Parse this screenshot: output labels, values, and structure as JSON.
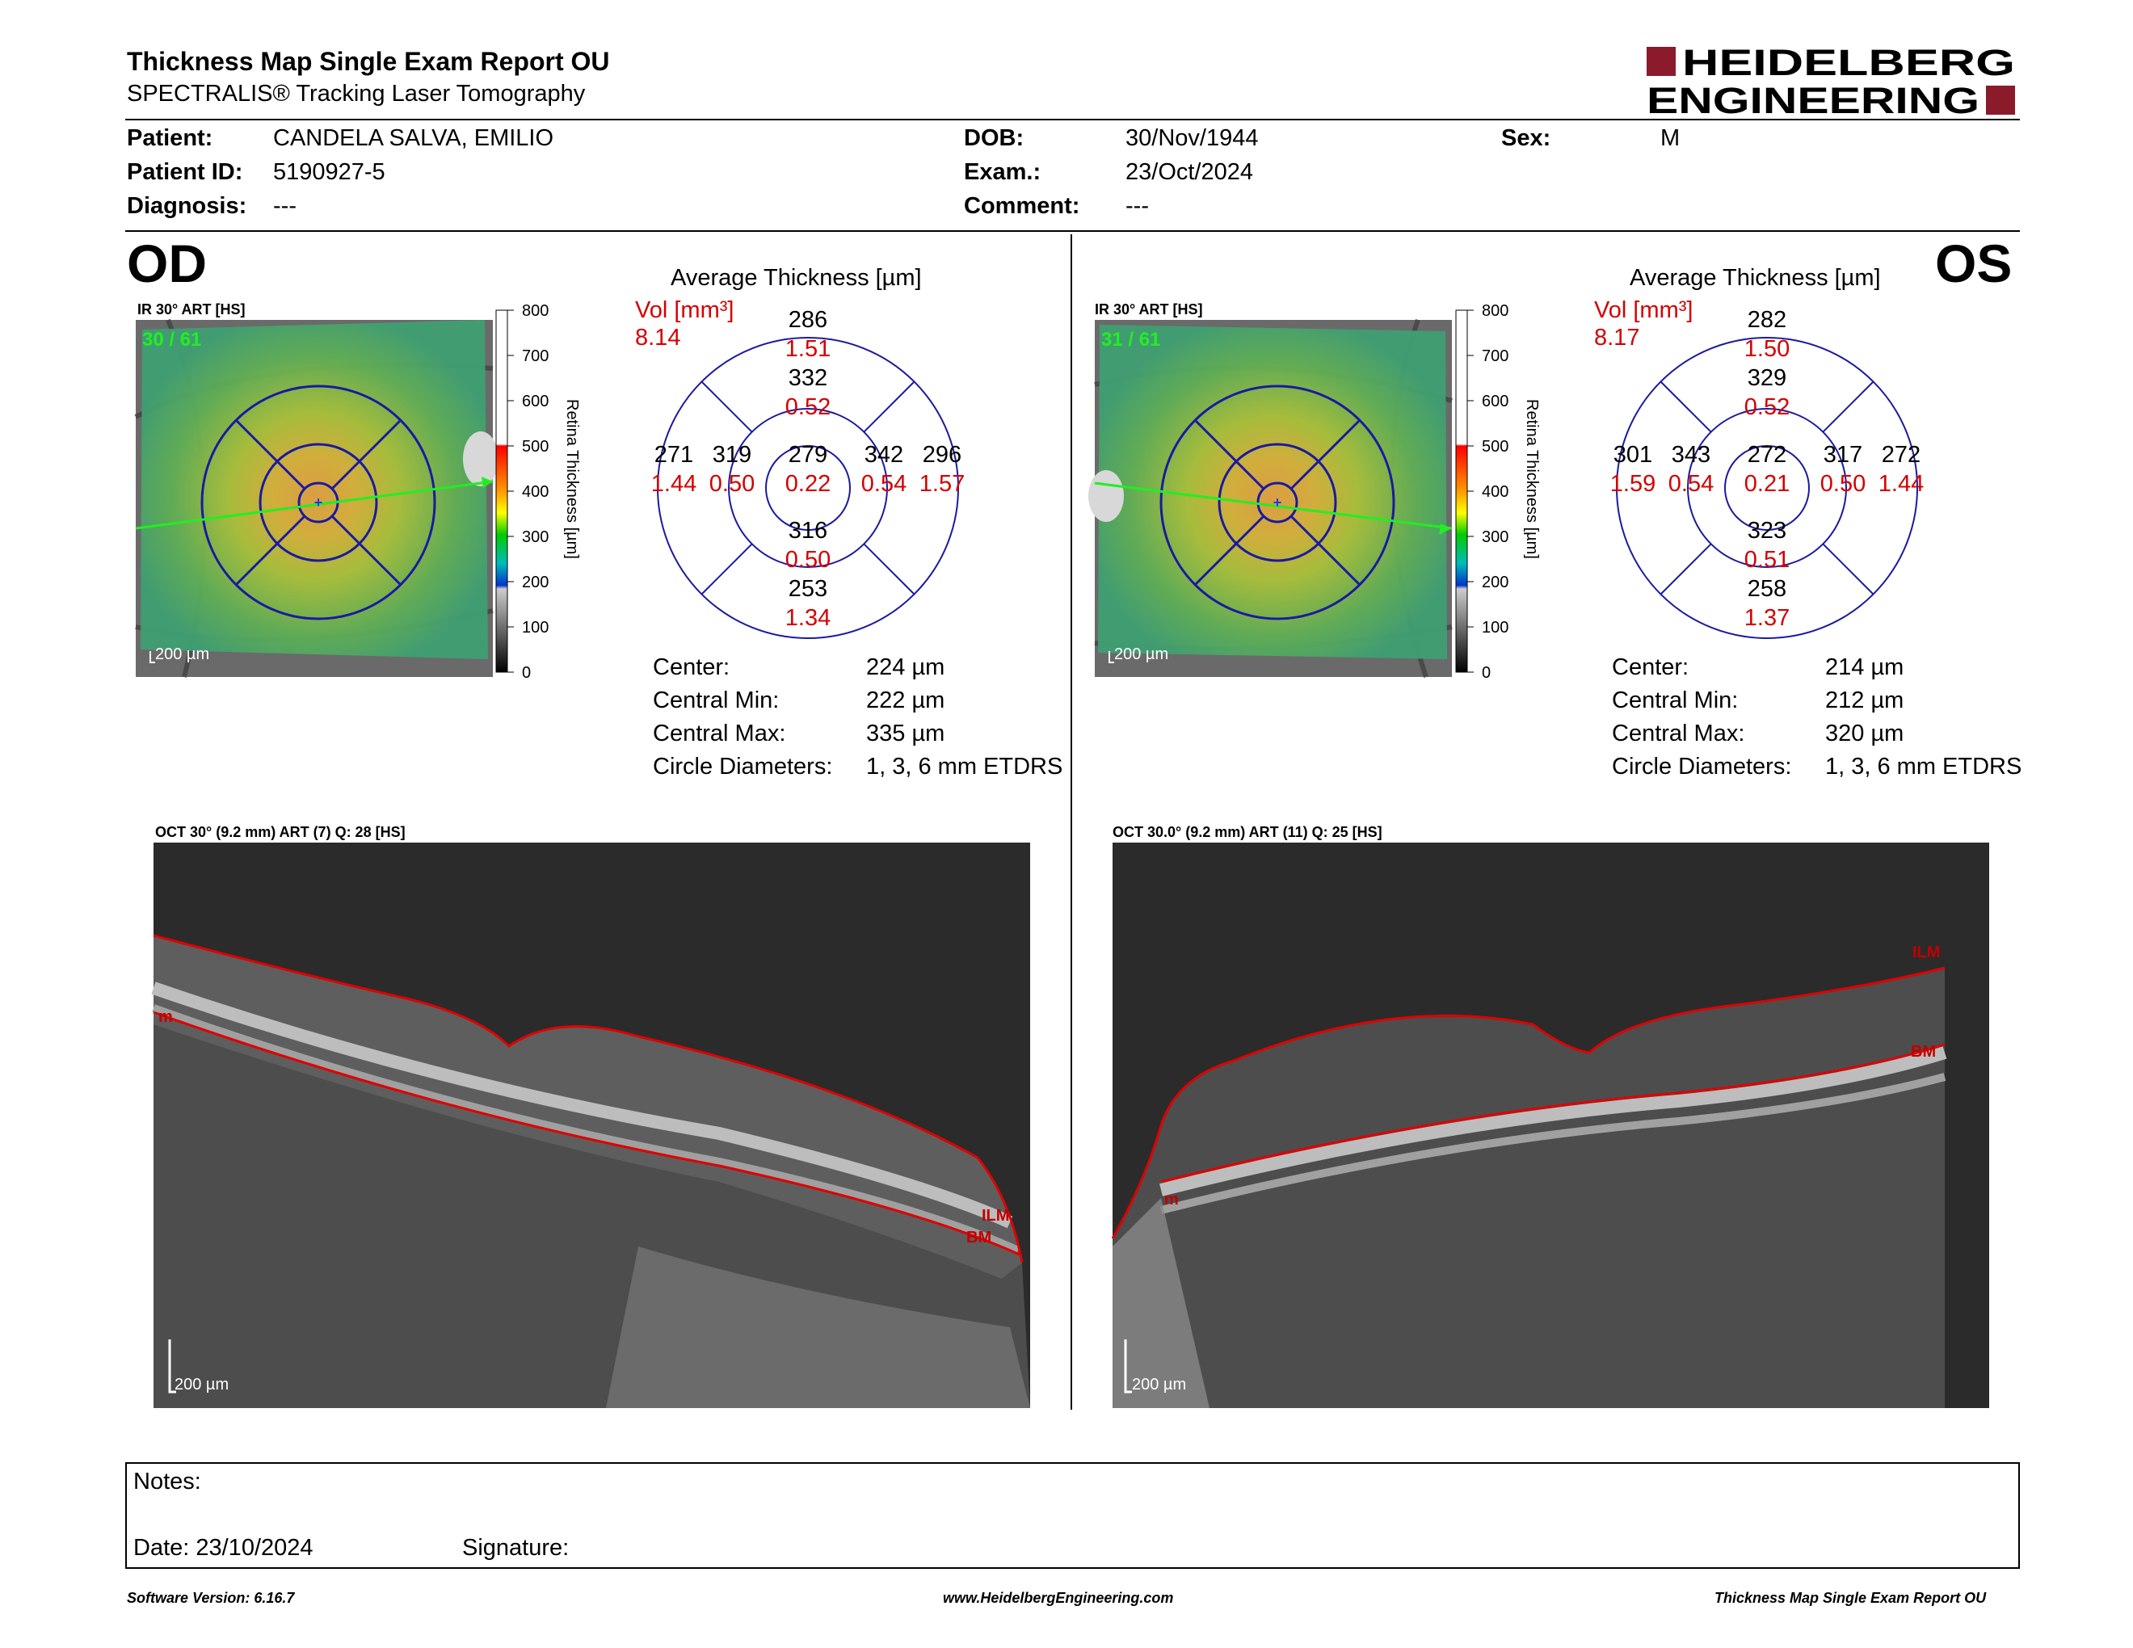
{
  "header": {
    "title": "Thickness Map Single Exam Report OU",
    "subtitle": "SPECTRALIS® Tracking Laser Tomography",
    "logo_line1": "HEIDELBERG",
    "logo_line2": "ENGINEERING",
    "brand_color": "#8b1a2b"
  },
  "patient": {
    "patient_label": "Patient:",
    "patient": "CANDELA SALVA, EMILIO",
    "id_label": "Patient ID:",
    "id": "5190927-5",
    "diagnosis_label": "Diagnosis:",
    "diagnosis": "---",
    "dob_label": "DOB:",
    "dob": "30/Nov/1944",
    "exam_label": "Exam.:",
    "exam": "23/Oct/2024",
    "comment_label": "Comment:",
    "comment": "---",
    "sex_label": "Sex:",
    "sex": "M"
  },
  "scale": {
    "ticks": [
      "800",
      "700",
      "600",
      "500",
      "400",
      "300",
      "200",
      "100",
      "0"
    ],
    "axis_label": "Retina  Thickness [µm]"
  },
  "od": {
    "eye": "OD",
    "fundus_label": "IR 30° ART [HS]",
    "scan_count": "30 / 61",
    "fundus_scale": "200 µm",
    "avg_title": "Average Thickness [µm]",
    "vol_label": "Vol [mm³]",
    "vol_total": "8.14",
    "etdrs": {
      "center_t": "279",
      "center_v": "0.22",
      "inner_sup_t": "332",
      "inner_sup_v": "0.52",
      "inner_inf_t": "316",
      "inner_inf_v": "0.50",
      "inner_left_t": "319",
      "inner_left_v": "0.50",
      "inner_right_t": "342",
      "inner_right_v": "0.54",
      "outer_sup_t": "286",
      "outer_sup_v": "1.51",
      "outer_inf_t": "253",
      "outer_inf_v": "1.34",
      "outer_left_t": "271",
      "outer_left_v": "1.44",
      "outer_right_t": "296",
      "outer_right_v": "1.57"
    },
    "stats": {
      "center_label": "Center:",
      "center": "224 µm",
      "min_label": "Central Min:",
      "min": "222 µm",
      "max_label": "Central Max:",
      "max": "335 µm",
      "diam_label": "Circle Diameters:",
      "diam": "1, 3, 6 mm ETDRS"
    },
    "oct_label": "OCT 30° (9.2 mm) ART (7) Q: 28 [HS]",
    "oct_scale": "200 µm",
    "layer_ilm": "ILM",
    "layer_bm": "BM",
    "layer_m": "m"
  },
  "os": {
    "eye": "OS",
    "fundus_label": "IR 30° ART [HS]",
    "scan_count": "31 / 61",
    "fundus_scale": "200 µm",
    "avg_title": "Average Thickness [µm]",
    "vol_label": "Vol [mm³]",
    "vol_total": "8.17",
    "etdrs": {
      "center_t": "272",
      "center_v": "0.21",
      "inner_sup_t": "329",
      "inner_sup_v": "0.52",
      "inner_inf_t": "323",
      "inner_inf_v": "0.51",
      "inner_left_t": "343",
      "inner_left_v": "0.54",
      "inner_right_t": "317",
      "inner_right_v": "0.50",
      "outer_sup_t": "282",
      "outer_sup_v": "1.50",
      "outer_inf_t": "258",
      "outer_inf_v": "1.37",
      "outer_left_t": "301",
      "outer_left_v": "1.59",
      "outer_right_t": "272",
      "outer_right_v": "1.44"
    },
    "stats": {
      "center_label": "Center:",
      "center": "214 µm",
      "min_label": "Central Min:",
      "min": "212 µm",
      "max_label": "Central Max:",
      "max": "320 µm",
      "diam_label": "Circle Diameters:",
      "diam": "1, 3, 6 mm ETDRS"
    },
    "oct_label": "OCT 30.0° (9.2 mm) ART (11) Q: 25 [HS]",
    "oct_scale": "200 µm",
    "layer_ilm": "ILM",
    "layer_bm": "BM",
    "layer_m": "m"
  },
  "notes": {
    "notes_label": "Notes:",
    "date_label": "Date: 23/10/2024",
    "signature_label": "Signature:"
  },
  "footer": {
    "software": "Software Version: 6.16.7",
    "website": "www.HeidelbergEngineering.com",
    "report": "Thickness Map Single Exam Report OU"
  }
}
